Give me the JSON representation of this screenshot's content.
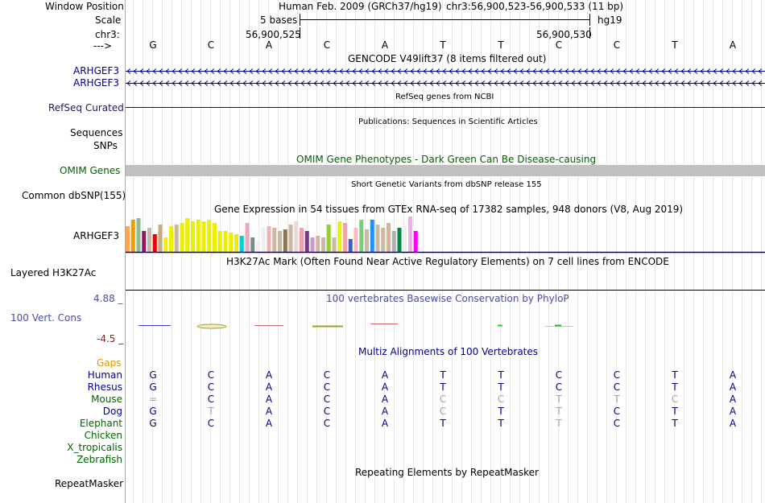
{
  "position": {
    "label": "Window Position",
    "assembly": "Human Feb. 2009 (GRCh37/hg19)",
    "range": "chr3:56,900,523-56,900,533 (11 bp)"
  },
  "scale": {
    "label": "Scale",
    "span": "5 bases",
    "db": "hg19"
  },
  "chrom": {
    "label": "chr3:",
    "pos_left": "56,900,525",
    "pos_right": "56,900,530"
  },
  "strand": {
    "label": "--->",
    "bases": [
      "G",
      "C",
      "A",
      "C",
      "A",
      "T",
      "T",
      "C",
      "C",
      "T",
      "A"
    ]
  },
  "tracks": {
    "gencode": {
      "title": "GENCODE V49lift37 (8 items filtered out)",
      "items": [
        "ARHGEF3",
        "ARHGEF3"
      ]
    },
    "refseq": {
      "title": "RefSeq genes from NCBI",
      "label": "RefSeq Curated"
    },
    "publications": {
      "title": "Publications: Sequences in Scientific Articles",
      "label1": "Sequences",
      "label2": "SNPs"
    },
    "omim": {
      "title": "OMIM Gene Phenotypes - Dark Green Can Be Disease-causing",
      "label": "OMIM Genes"
    },
    "dbsnp": {
      "title": "Short Genetic Variants from dbSNP release 155",
      "label": "Common dbSNP(155)"
    },
    "gtex": {
      "title": "Gene Expression in 54 tissues from GTEx RNA-seq of 17382 samples, 948 donors (V8, Aug 2019)",
      "label": "ARHGEF3",
      "values": [
        32,
        40,
        42,
        26,
        30,
        22,
        34,
        18,
        32,
        34,
        36,
        42,
        38,
        40,
        38,
        40,
        36,
        26,
        26,
        24,
        22,
        20,
        36,
        18,
        14,
        30,
        32,
        30,
        26,
        28,
        34,
        38,
        30,
        26,
        18,
        20,
        18,
        34,
        18,
        38,
        36,
        16,
        30,
        40,
        28,
        40,
        34,
        30,
        36,
        26,
        30,
        32,
        44,
        26
      ],
      "colors": [
        "#ffa54f",
        "#ee9a00",
        "#8fbc8f",
        "#8b1c62",
        "#cdb79e",
        "#ee0000",
        "#cdaa7d",
        "#eeee00",
        "#eeee00",
        "#cdb79e",
        "#eeee00",
        "#eeee00",
        "#eeee00",
        "#eeee00",
        "#eeee00",
        "#eeee00",
        "#eeee00",
        "#eeee00",
        "#eeee00",
        "#eeee00",
        "#eeee00",
        "#00cdcd",
        "#eea9b8",
        "#7a8b8b",
        "#eeeeee",
        "#eeeeee",
        "#eeb4b4",
        "#cdb79e",
        "#cdb79e",
        "#8b7355",
        "#cdb79e",
        "#eed5d2",
        "#eea2ad",
        "#7a378b",
        "#cd96cd",
        "#cdb79e",
        "#cdb79e",
        "#9acd32",
        "#cdb79e",
        "#eeee00",
        "#eea2ad",
        "#3a5fcd",
        "#ffb6c1",
        "#7ccd7c",
        "#cdb79e",
        "#1e90ff",
        "#cdb79e",
        "#cdb79e",
        "#cdb79e",
        "#b0b0b0",
        "#008b45",
        "#eeeeee",
        "#eeaeee",
        "#ff00ff"
      ]
    },
    "h3k27ac": {
      "title": "H3K27Ac Mark (Often Found Near Active Regulatory Elements) on 7 cell lines from ENCODE",
      "label": "Layered H3K27Ac"
    },
    "phylop": {
      "title": "100 vertebrates Basewise Conservation by PhyloP",
      "label": "100 Vert. Cons",
      "max": "4.88 _",
      "min": "-4.5 _"
    },
    "multiz": {
      "title": "Multiz Alignments of 100 Vertebrates",
      "gaps_label": "Gaps",
      "species": [
        {
          "name": "Human",
          "color": "#00008b",
          "bases": [
            "G",
            "C",
            "A",
            "C",
            "A",
            "T",
            "T",
            "C",
            "C",
            "T",
            "A"
          ],
          "dim": [
            0,
            0,
            0,
            0,
            0,
            0,
            0,
            0,
            0,
            0,
            0
          ]
        },
        {
          "name": "Rhesus",
          "color": "#00008b",
          "bases": [
            "G",
            "C",
            "A",
            "C",
            "A",
            "T",
            "T",
            "C",
            "C",
            "T",
            "A"
          ],
          "dim": [
            0,
            0,
            0,
            0,
            0,
            0,
            0,
            0,
            0,
            0,
            0
          ]
        },
        {
          "name": "Mouse",
          "color": "#006400",
          "bases": [
            "=",
            "C",
            "A",
            "C",
            "A",
            "C",
            "C",
            "T",
            "T",
            "C",
            "A"
          ],
          "dim": [
            1,
            0,
            0,
            0,
            0,
            1,
            1,
            1,
            1,
            1,
            0
          ]
        },
        {
          "name": "Dog",
          "color": "#00008b",
          "bases": [
            "G",
            "T",
            "A",
            "C",
            "A",
            "C",
            "T",
            "T",
            "C",
            "T",
            "A"
          ],
          "dim": [
            0,
            1,
            0,
            0,
            0,
            1,
            0,
            1,
            0,
            0,
            0
          ]
        },
        {
          "name": "Elephant",
          "color": "#006400",
          "bases": [
            "G",
            "C",
            "A",
            "C",
            "A",
            "T",
            "T",
            "T",
            "C",
            "T",
            "A"
          ],
          "dim": [
            0,
            0,
            0,
            0,
            0,
            0,
            0,
            1,
            0,
            0,
            0
          ]
        },
        {
          "name": "Chicken",
          "color": "#006400",
          "bases": [],
          "dim": []
        },
        {
          "name": "X_tropicalis",
          "color": "#006400",
          "bases": [],
          "dim": []
        },
        {
          "name": "Zebrafish",
          "color": "#006400",
          "bases": [],
          "dim": []
        }
      ]
    },
    "repeatmasker": {
      "title": "Repeating Elements by RepeatMasker",
      "label": "RepeatMasker"
    }
  },
  "colors": {
    "grid": "#e8e2ff",
    "navy": "#191970",
    "blue": "#00008b",
    "green": "#006400",
    "phylop": "#4b4ba5",
    "omim_bar": "#c0c0c0",
    "gaps": "#e69500",
    "dim_base": "#a0a0b8"
  }
}
